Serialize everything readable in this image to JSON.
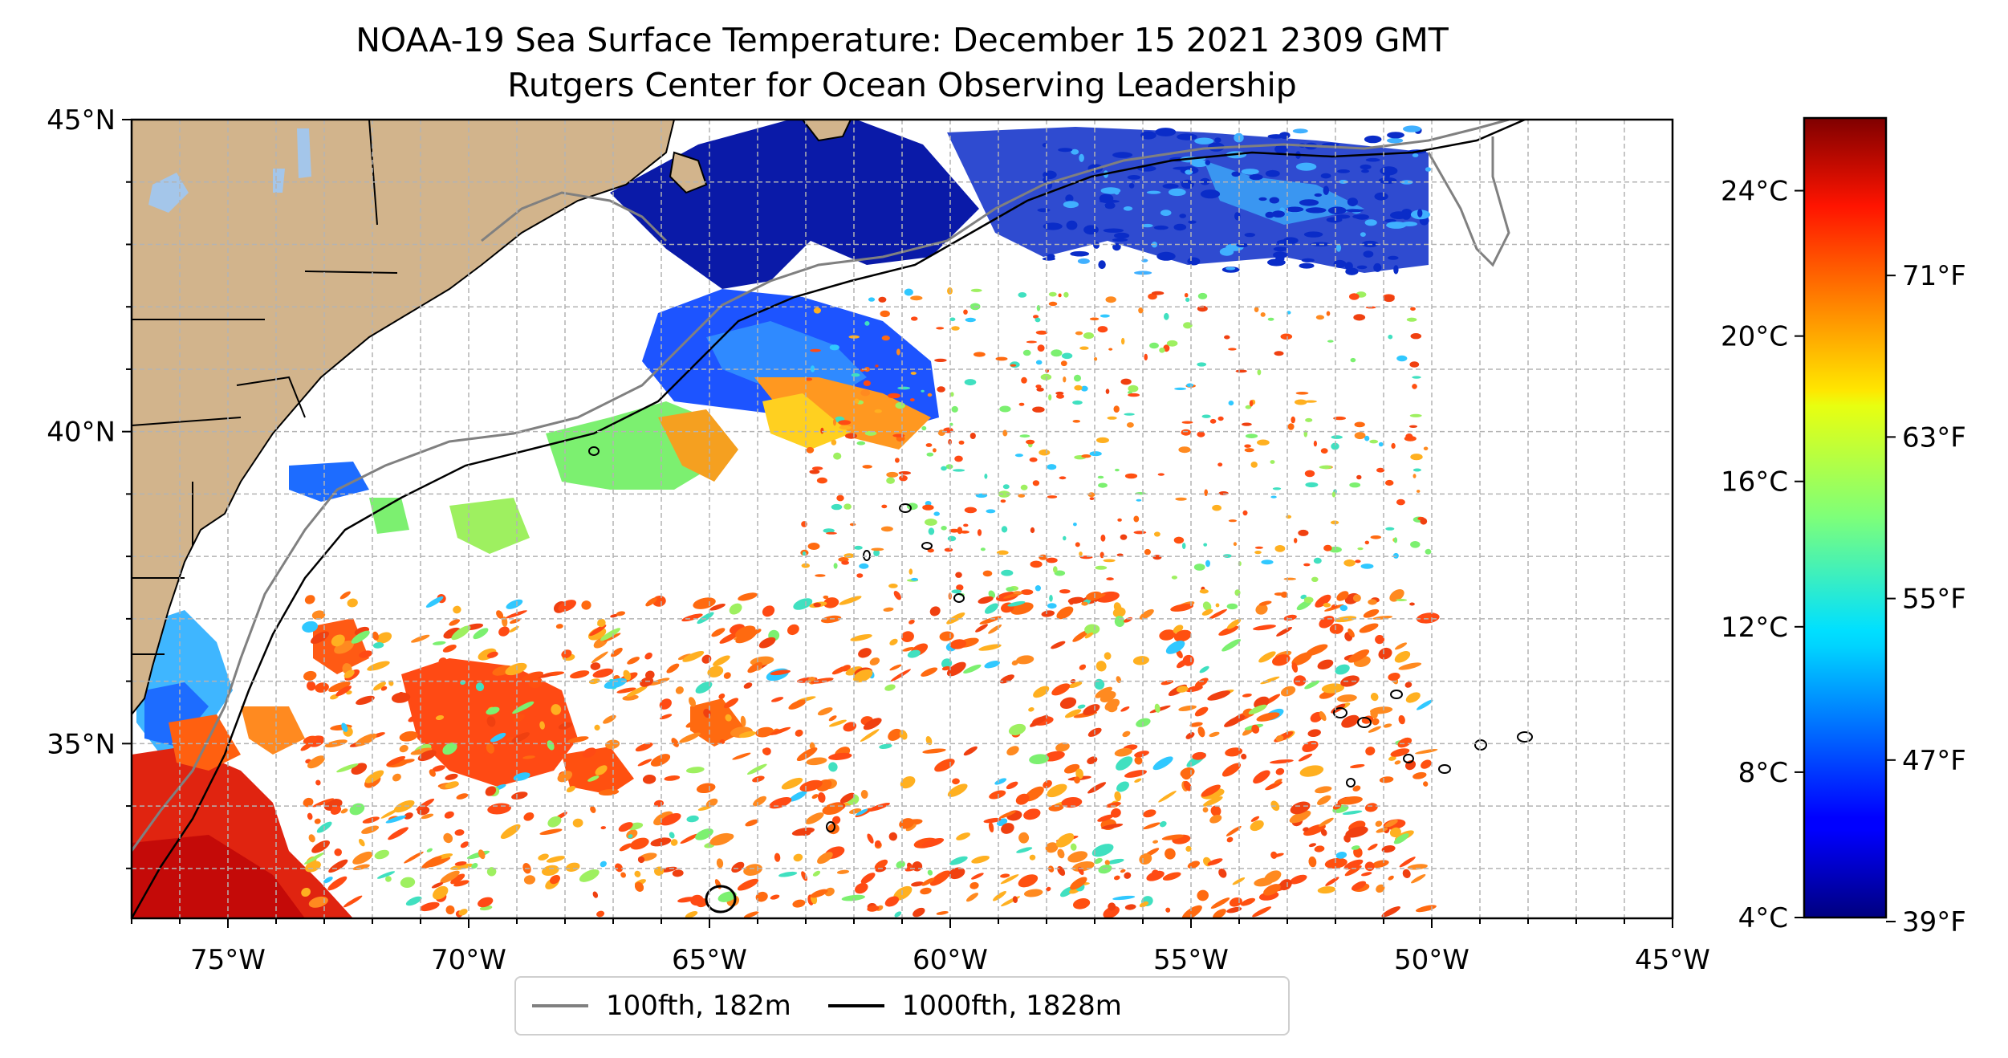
{
  "title": {
    "line1": "NOAA-19 Sea Surface Temperature: December 15 2021 2309 GMT",
    "line2": "Rutgers Center for Ocean Observing Leadership"
  },
  "axes": {
    "lon_range": [
      -77,
      -45
    ],
    "lat_range": [
      32.2,
      45
    ],
    "lon_ticks": [
      {
        "value": -75,
        "label": "75°W"
      },
      {
        "value": -70,
        "label": "70°W"
      },
      {
        "value": -65,
        "label": "65°W"
      },
      {
        "value": -60,
        "label": "60°W"
      },
      {
        "value": -55,
        "label": "55°W"
      },
      {
        "value": -50,
        "label": "50°W"
      },
      {
        "value": -45,
        "label": "45°W"
      }
    ],
    "lat_ticks": [
      {
        "value": 45,
        "label": "45°N"
      },
      {
        "value": 40,
        "label": "40°N"
      },
      {
        "value": 35,
        "label": "35°N"
      }
    ],
    "grid": true,
    "grid_step_deg": 1
  },
  "colorbar": {
    "colormap": "jet",
    "celsius_range": [
      4,
      26
    ],
    "celsius_ticks": [
      {
        "value": 24,
        "label": "24°C"
      },
      {
        "value": 20,
        "label": "20°C"
      },
      {
        "value": 16,
        "label": "16°C"
      },
      {
        "value": 12,
        "label": "12°C"
      },
      {
        "value": 8,
        "label": "8°C"
      },
      {
        "value": 4,
        "label": "4°C"
      }
    ],
    "fahrenheit_ticks": [
      {
        "value": 71,
        "label": "71°F"
      },
      {
        "value": 63,
        "label": "63°F"
      },
      {
        "value": 55,
        "label": "55°F"
      },
      {
        "value": 47,
        "label": "47°F"
      },
      {
        "value": 39,
        "label": "39°F"
      }
    ]
  },
  "legend": {
    "placement": "bottom-center",
    "items": [
      {
        "label": "100fth, 182m",
        "color": "#808080"
      },
      {
        "label": "1000fth, 1828m",
        "color": "#000000"
      }
    ]
  },
  "colors": {
    "land": "#d2b48c",
    "lakes": "#a4c6ea",
    "grid": "#b3b3b3"
  }
}
